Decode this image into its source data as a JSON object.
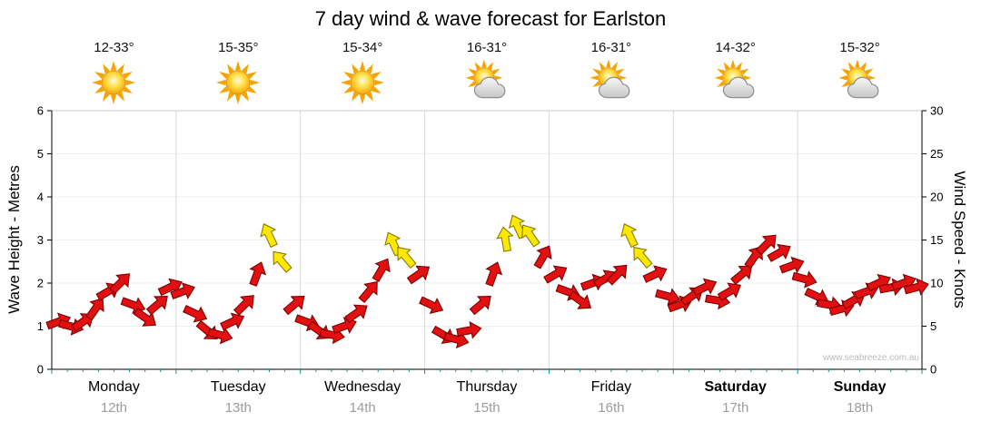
{
  "title": "7 day wind & wave forecast for Earlston",
  "watermark": "www.seabreeze.com.au",
  "forecast": [
    {
      "temp": "12-33°",
      "icon": "sunny"
    },
    {
      "temp": "15-35°",
      "icon": "sunny"
    },
    {
      "temp": "15-34°",
      "icon": "sunny"
    },
    {
      "temp": "16-31°",
      "icon": "partly-cloudy"
    },
    {
      "temp": "16-31°",
      "icon": "partly-cloudy"
    },
    {
      "temp": "14-32°",
      "icon": "partly-cloudy"
    },
    {
      "temp": "15-32°",
      "icon": "partly-cloudy"
    }
  ],
  "chart_data": {
    "type": "scatter",
    "subtype": "wind-direction-arrows",
    "title": "7 day wind & wave forecast for Earlston",
    "left_axis": {
      "label": "Wave Height - Metres",
      "min": 0,
      "max": 6,
      "ticks": [
        0,
        1,
        2,
        3,
        4,
        5,
        6
      ]
    },
    "right_axis": {
      "label": "Wind Speed - Knots",
      "min": 0,
      "max": 30,
      "ticks": [
        0,
        5,
        10,
        15,
        20,
        25,
        30
      ]
    },
    "days": [
      {
        "name": "Monday",
        "date": "12th",
        "bold": false
      },
      {
        "name": "Tuesday",
        "date": "13th",
        "bold": false
      },
      {
        "name": "Wednesday",
        "date": "14th",
        "bold": false
      },
      {
        "name": "Thursday",
        "date": "15th",
        "bold": false
      },
      {
        "name": "Friday",
        "date": "16th",
        "bold": false
      },
      {
        "name": "Saturday",
        "date": "17th",
        "bold": true
      },
      {
        "name": "Sunday",
        "date": "18th",
        "bold": true
      }
    ],
    "arrow_colors": {
      "r": "#e21010",
      "y": "#ffe800"
    },
    "grid": {
      "vertical_per_day": true,
      "horizontal_every_metre": true
    },
    "points_columns": [
      "day_offset",
      "knots",
      "rotation_deg",
      "color"
    ],
    "points": [
      [
        0.05,
        5.5,
        -20,
        "r"
      ],
      [
        0.15,
        5.0,
        15,
        "r"
      ],
      [
        0.25,
        5.5,
        -35,
        "r"
      ],
      [
        0.35,
        7.0,
        -55,
        "r"
      ],
      [
        0.45,
        9.0,
        -30,
        "r"
      ],
      [
        0.55,
        10.0,
        -45,
        "r"
      ],
      [
        0.65,
        7.5,
        20,
        "r"
      ],
      [
        0.75,
        6.0,
        35,
        "r"
      ],
      [
        0.85,
        7.5,
        -40,
        "r"
      ],
      [
        0.95,
        9.5,
        -25,
        "r"
      ],
      [
        1.05,
        9.0,
        -20,
        "r"
      ],
      [
        1.15,
        6.5,
        25,
        "r"
      ],
      [
        1.25,
        4.5,
        40,
        "r"
      ],
      [
        1.35,
        4.0,
        15,
        "r"
      ],
      [
        1.45,
        5.5,
        -25,
        "r"
      ],
      [
        1.55,
        7.5,
        -45,
        "r"
      ],
      [
        1.65,
        11.0,
        -70,
        "r"
      ],
      [
        1.75,
        15.5,
        -115,
        "y"
      ],
      [
        1.85,
        12.5,
        -130,
        "y"
      ],
      [
        1.95,
        7.5,
        -40,
        "r"
      ],
      [
        2.05,
        5.5,
        20,
        "r"
      ],
      [
        2.15,
        4.5,
        35,
        "r"
      ],
      [
        2.25,
        4.0,
        10,
        "r"
      ],
      [
        2.35,
        5.0,
        -20,
        "r"
      ],
      [
        2.45,
        6.5,
        -35,
        "r"
      ],
      [
        2.55,
        9.0,
        -50,
        "r"
      ],
      [
        2.65,
        11.5,
        -60,
        "r"
      ],
      [
        2.75,
        14.5,
        -115,
        "y"
      ],
      [
        2.85,
        13.0,
        -130,
        "y"
      ],
      [
        2.95,
        11.0,
        -35,
        "r"
      ],
      [
        3.05,
        7.5,
        25,
        "r"
      ],
      [
        3.15,
        4.0,
        30,
        "r"
      ],
      [
        3.25,
        3.5,
        15,
        "r"
      ],
      [
        3.35,
        4.5,
        -10,
        "r"
      ],
      [
        3.45,
        7.5,
        -40,
        "r"
      ],
      [
        3.55,
        11.0,
        -70,
        "r"
      ],
      [
        3.65,
        15.0,
        -100,
        "y"
      ],
      [
        3.75,
        16.5,
        -115,
        "y"
      ],
      [
        3.85,
        15.5,
        -125,
        "y"
      ],
      [
        3.95,
        13.0,
        -60,
        "r"
      ],
      [
        4.05,
        11.0,
        -30,
        "r"
      ],
      [
        4.15,
        9.0,
        20,
        "r"
      ],
      [
        4.25,
        8.0,
        35,
        "r"
      ],
      [
        4.35,
        10.0,
        -20,
        "r"
      ],
      [
        4.45,
        10.5,
        -30,
        "r"
      ],
      [
        4.55,
        11.0,
        -45,
        "r"
      ],
      [
        4.65,
        15.5,
        -115,
        "y"
      ],
      [
        4.75,
        13.0,
        -130,
        "y"
      ],
      [
        4.85,
        11.0,
        -25,
        "r"
      ],
      [
        4.95,
        8.5,
        15,
        "r"
      ],
      [
        5.05,
        7.5,
        -20,
        "r"
      ],
      [
        5.15,
        8.5,
        -35,
        "r"
      ],
      [
        5.25,
        9.5,
        -25,
        "r"
      ],
      [
        5.35,
        8.0,
        10,
        "r"
      ],
      [
        5.45,
        9.0,
        -30,
        "r"
      ],
      [
        5.55,
        11.0,
        -40,
        "r"
      ],
      [
        5.65,
        13.0,
        -55,
        "r"
      ],
      [
        5.75,
        14.5,
        -45,
        "r"
      ],
      [
        5.85,
        13.5,
        -30,
        "r"
      ],
      [
        5.95,
        12.0,
        -20,
        "r"
      ],
      [
        6.05,
        10.5,
        15,
        "r"
      ],
      [
        6.15,
        8.5,
        25,
        "r"
      ],
      [
        6.25,
        7.5,
        10,
        "r"
      ],
      [
        6.35,
        7.0,
        -15,
        "r"
      ],
      [
        6.45,
        8.0,
        -30,
        "r"
      ],
      [
        6.55,
        9.0,
        -20,
        "r"
      ],
      [
        6.65,
        10.0,
        -25,
        "r"
      ],
      [
        6.75,
        9.5,
        -10,
        "r"
      ],
      [
        6.85,
        10.0,
        -20,
        "r"
      ],
      [
        6.95,
        9.5,
        -15,
        "r"
      ]
    ]
  }
}
